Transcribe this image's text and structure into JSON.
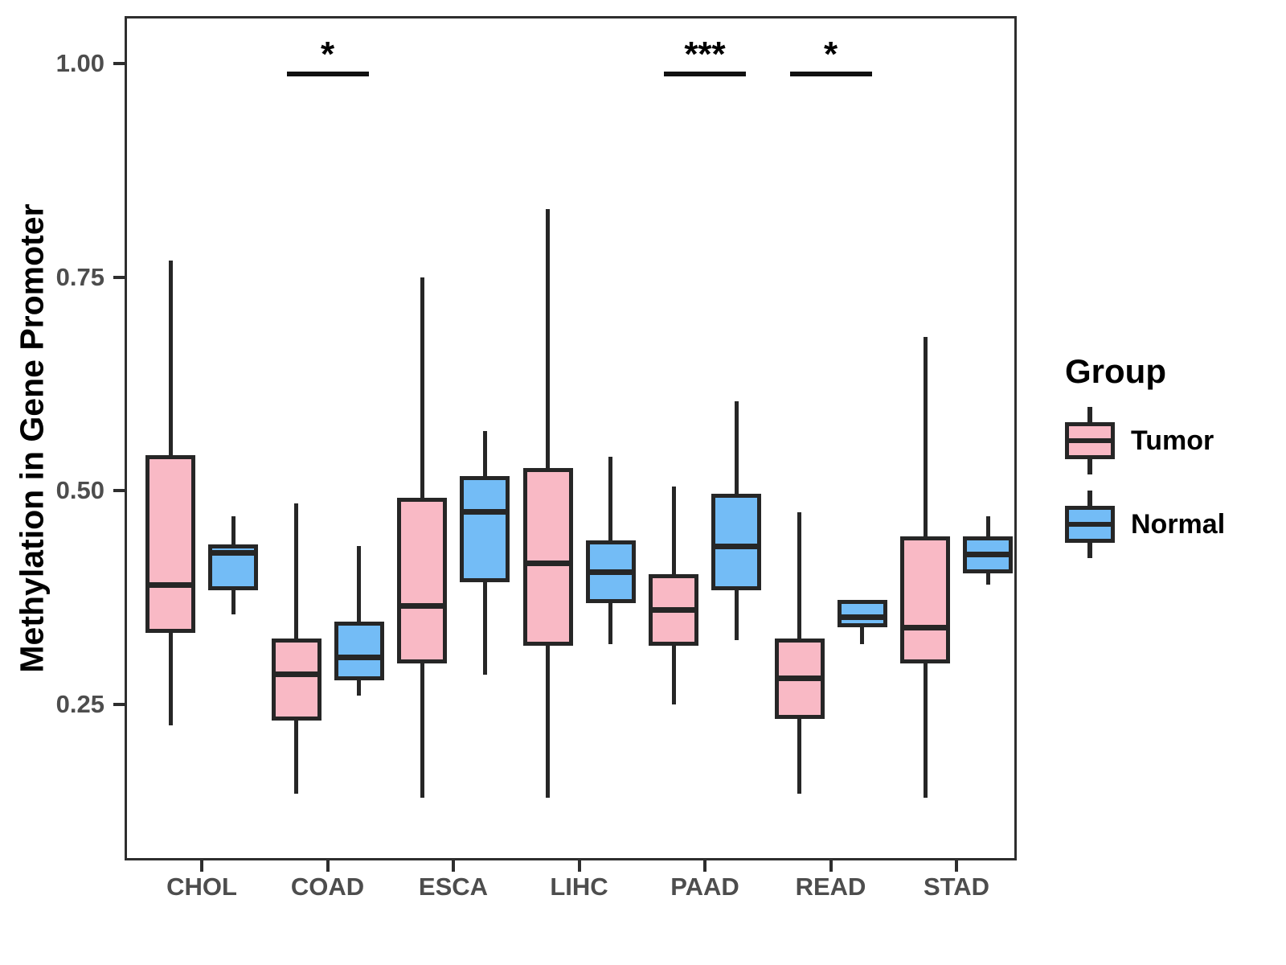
{
  "chart_data": {
    "type": "boxplot",
    "orientation": "vertical",
    "title": "",
    "xlabel": "",
    "ylabel": "Methylation in Gene Promoter",
    "grid": false,
    "background": "#FFFFFF",
    "axis_text_color": "#4D4D4D",
    "box_line_color": "#262626",
    "categories": [
      "CHOL",
      "COAD",
      "ESCA",
      "LIHC",
      "PAAD",
      "READ",
      "STAD"
    ],
    "ylim": [
      0.067,
      1.056
    ],
    "yticks": [
      {
        "value": 0.25,
        "label": "0.25"
      },
      {
        "value": 0.5,
        "label": "0.50"
      },
      {
        "value": 0.75,
        "label": "0.75"
      },
      {
        "value": 1.0,
        "label": "1.00"
      }
    ],
    "legend": {
      "title": "Group",
      "position": "right",
      "entries": [
        {
          "label": "Tumor",
          "color": "#F9B9C5"
        },
        {
          "label": "Normal",
          "color": "#73BCF6"
        }
      ]
    },
    "series": [
      {
        "name": "Tumor",
        "color": "#F9B9C5",
        "boxes": [
          {
            "category": "CHOL",
            "whisker_low": 0.225,
            "q1": 0.335,
            "median": 0.39,
            "q3": 0.54,
            "whisker_high": 0.77
          },
          {
            "category": "COAD",
            "whisker_low": 0.145,
            "q1": 0.233,
            "median": 0.285,
            "q3": 0.325,
            "whisker_high": 0.485
          },
          {
            "category": "ESCA",
            "whisker_low": 0.14,
            "q1": 0.3,
            "median": 0.365,
            "q3": 0.49,
            "whisker_high": 0.75
          },
          {
            "category": "LIHC",
            "whisker_low": 0.14,
            "q1": 0.32,
            "median": 0.415,
            "q3": 0.525,
            "whisker_high": 0.83
          },
          {
            "category": "PAAD",
            "whisker_low": 0.25,
            "q1": 0.32,
            "median": 0.36,
            "q3": 0.4,
            "whisker_high": 0.505
          },
          {
            "category": "READ",
            "whisker_low": 0.145,
            "q1": 0.235,
            "median": 0.28,
            "q3": 0.325,
            "whisker_high": 0.475
          },
          {
            "category": "STAD",
            "whisker_low": 0.14,
            "q1": 0.3,
            "median": 0.34,
            "q3": 0.445,
            "whisker_high": 0.68
          }
        ]
      },
      {
        "name": "Normal",
        "color": "#73BCF6",
        "boxes": [
          {
            "category": "CHOL",
            "whisker_low": 0.355,
            "q1": 0.385,
            "median": 0.427,
            "q3": 0.435,
            "whisker_high": 0.47
          },
          {
            "category": "COAD",
            "whisker_low": 0.26,
            "q1": 0.28,
            "median": 0.305,
            "q3": 0.345,
            "whisker_high": 0.435
          },
          {
            "category": "ESCA",
            "whisker_low": 0.285,
            "q1": 0.395,
            "median": 0.475,
            "q3": 0.515,
            "whisker_high": 0.57
          },
          {
            "category": "LIHC",
            "whisker_low": 0.32,
            "q1": 0.37,
            "median": 0.405,
            "q3": 0.44,
            "whisker_high": 0.54
          },
          {
            "category": "PAAD",
            "whisker_low": 0.325,
            "q1": 0.385,
            "median": 0.435,
            "q3": 0.495,
            "whisker_high": 0.605
          },
          {
            "category": "READ",
            "whisker_low": 0.32,
            "q1": 0.342,
            "median": 0.352,
            "q3": 0.37,
            "whisker_high": 0.37
          },
          {
            "category": "STAD",
            "whisker_low": 0.39,
            "q1": 0.405,
            "median": 0.425,
            "q3": 0.445,
            "whisker_high": 0.47
          }
        ]
      }
    ],
    "significance": [
      {
        "category": "COAD",
        "label": "*"
      },
      {
        "category": "PAAD",
        "label": "***"
      },
      {
        "category": "READ",
        "label": "*"
      }
    ]
  }
}
